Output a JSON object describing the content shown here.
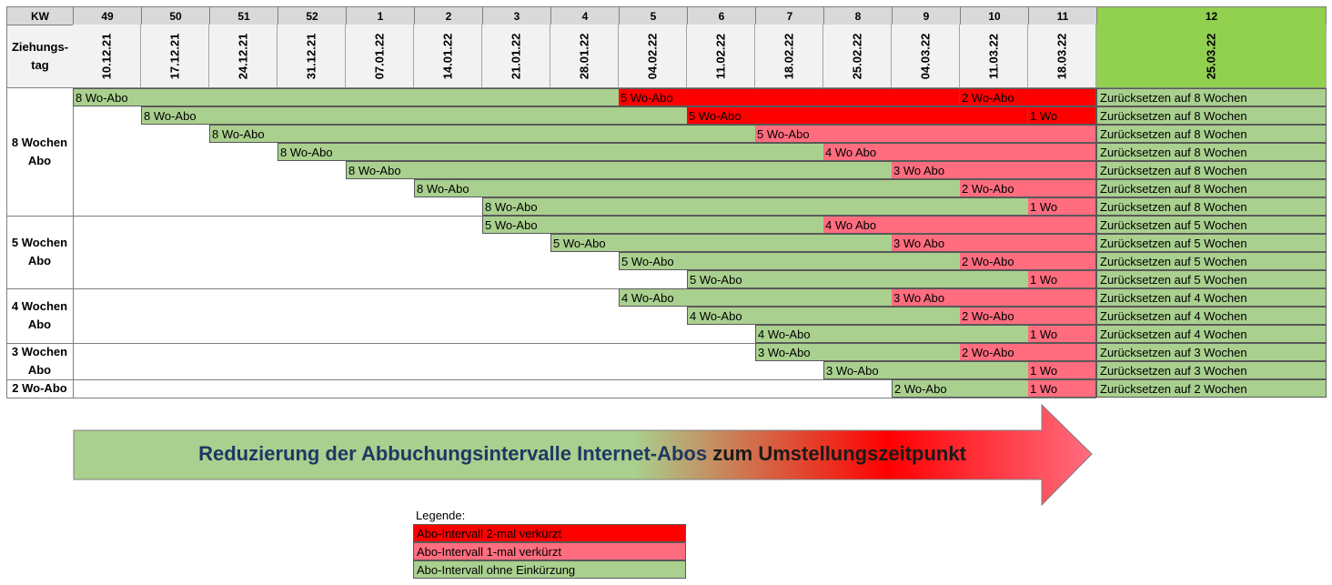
{
  "header": {
    "kw_label": "KW",
    "ziehungstag_label": "Ziehungs-\ntag",
    "weeks": [
      "49",
      "50",
      "51",
      "52",
      "1",
      "2",
      "3",
      "4",
      "5",
      "6",
      "7",
      "8",
      "9",
      "10",
      "11"
    ],
    "dates": [
      "10.12.21",
      "17.12.21",
      "24.12.21",
      "31.12.21",
      "07.01.22",
      "14.01.22",
      "21.01.22",
      "28.01.22",
      "04.02.22",
      "11.02.22",
      "18.02.22",
      "25.02.22",
      "04.03.22",
      "11.03.22",
      "18.03.22"
    ],
    "final_week": "12",
    "final_date": "25.03.22"
  },
  "groups": [
    {
      "label": "8 Wochen\nAbo",
      "rows": [
        0,
        1,
        2,
        3,
        4,
        5,
        6
      ]
    },
    {
      "label": "5 Wochen\nAbo",
      "rows": [
        7,
        8,
        9,
        10
      ]
    },
    {
      "label": "4 Wochen\nAbo",
      "rows": [
        11,
        12,
        13
      ]
    },
    {
      "label": "3 Wochen\nAbo",
      "rows": [
        14,
        15
      ]
    },
    {
      "label": "2 Wo-Abo",
      "rows": [
        16
      ]
    }
  ],
  "rows": [
    {
      "segments": [
        {
          "start": 0,
          "span": 8,
          "type": "green",
          "label": "8 Wo-Abo"
        },
        {
          "start": 8,
          "span": 5,
          "type": "red",
          "label": "5 Wo-Abo"
        },
        {
          "start": 13,
          "span": 2,
          "type": "red",
          "label": "2 Wo-Abo"
        }
      ],
      "reset": "Zurücksetzen auf 8 Wochen"
    },
    {
      "segments": [
        {
          "start": 1,
          "span": 8,
          "type": "green",
          "label": "8 Wo-Abo"
        },
        {
          "start": 9,
          "span": 5,
          "type": "red",
          "label": "5 Wo-Abo"
        },
        {
          "start": 14,
          "span": 1,
          "type": "red",
          "label": "1 Wo"
        }
      ],
      "reset": "Zurücksetzen auf 8 Wochen"
    },
    {
      "segments": [
        {
          "start": 2,
          "span": 8,
          "type": "green",
          "label": "8 Wo-Abo"
        },
        {
          "start": 10,
          "span": 5,
          "type": "pink",
          "label": "5 Wo-Abo"
        }
      ],
      "reset": "Zurücksetzen auf 8 Wochen"
    },
    {
      "segments": [
        {
          "start": 3,
          "span": 8,
          "type": "green",
          "label": "8 Wo-Abo"
        },
        {
          "start": 11,
          "span": 4,
          "type": "pink",
          "label": "4 Wo Abo"
        }
      ],
      "reset": "Zurücksetzen auf 8 Wochen"
    },
    {
      "segments": [
        {
          "start": 4,
          "span": 8,
          "type": "green",
          "label": "8 Wo-Abo"
        },
        {
          "start": 12,
          "span": 3,
          "type": "pink",
          "label": "3 Wo Abo"
        }
      ],
      "reset": "Zurücksetzen auf 8 Wochen"
    },
    {
      "segments": [
        {
          "start": 5,
          "span": 8,
          "type": "green",
          "label": "8 Wo-Abo"
        },
        {
          "start": 13,
          "span": 2,
          "type": "pink",
          "label": "2 Wo-Abo"
        }
      ],
      "reset": "Zurücksetzen auf 8 Wochen"
    },
    {
      "segments": [
        {
          "start": 6,
          "span": 8,
          "type": "green",
          "label": "8 Wo-Abo"
        },
        {
          "start": 14,
          "span": 1,
          "type": "pink",
          "label": "1 Wo"
        }
      ],
      "reset": "Zurücksetzen auf 8 Wochen"
    },
    {
      "segments": [
        {
          "start": 6,
          "span": 5,
          "type": "green",
          "label": "5 Wo-Abo"
        },
        {
          "start": 11,
          "span": 4,
          "type": "pink",
          "label": "4 Wo Abo"
        }
      ],
      "reset": "Zurücksetzen auf 5 Wochen"
    },
    {
      "segments": [
        {
          "start": 7,
          "span": 5,
          "type": "green",
          "label": "5 Wo-Abo"
        },
        {
          "start": 12,
          "span": 3,
          "type": "pink",
          "label": "3 Wo Abo"
        }
      ],
      "reset": "Zurücksetzen auf 5 Wochen"
    },
    {
      "segments": [
        {
          "start": 8,
          "span": 5,
          "type": "green",
          "label": "5 Wo-Abo"
        },
        {
          "start": 13,
          "span": 2,
          "type": "pink",
          "label": "2 Wo-Abo"
        }
      ],
      "reset": "Zurücksetzen auf 5 Wochen"
    },
    {
      "segments": [
        {
          "start": 9,
          "span": 5,
          "type": "green",
          "label": "5 Wo-Abo"
        },
        {
          "start": 14,
          "span": 1,
          "type": "pink",
          "label": "1 Wo"
        }
      ],
      "reset": "Zurücksetzen auf 5 Wochen"
    },
    {
      "segments": [
        {
          "start": 8,
          "span": 4,
          "type": "green",
          "label": "4 Wo-Abo"
        },
        {
          "start": 12,
          "span": 3,
          "type": "pink",
          "label": "3 Wo Abo"
        }
      ],
      "reset": "Zurücksetzen auf 4 Wochen"
    },
    {
      "segments": [
        {
          "start": 9,
          "span": 4,
          "type": "green",
          "label": "4 Wo-Abo"
        },
        {
          "start": 13,
          "span": 2,
          "type": "pink",
          "label": "2 Wo-Abo"
        }
      ],
      "reset": "Zurücksetzen auf 4 Wochen"
    },
    {
      "segments": [
        {
          "start": 10,
          "span": 4,
          "type": "green",
          "label": "4 Wo-Abo"
        },
        {
          "start": 14,
          "span": 1,
          "type": "pink",
          "label": "1 Wo"
        }
      ],
      "reset": "Zurücksetzen auf 4 Wochen"
    },
    {
      "segments": [
        {
          "start": 10,
          "span": 3,
          "type": "green",
          "label": "3 Wo-Abo"
        },
        {
          "start": 13,
          "span": 2,
          "type": "pink",
          "label": "2 Wo-Abo"
        }
      ],
      "reset": "Zurücksetzen auf 3 Wochen"
    },
    {
      "segments": [
        {
          "start": 11,
          "span": 3,
          "type": "green",
          "label": "3 Wo-Abo"
        },
        {
          "start": 14,
          "span": 1,
          "type": "pink",
          "label": "1 Wo"
        }
      ],
      "reset": "Zurücksetzen auf 3 Wochen"
    },
    {
      "segments": [
        {
          "start": 12,
          "span": 2,
          "type": "green",
          "label": "2 Wo-Abo"
        },
        {
          "start": 14,
          "span": 1,
          "type": "pink",
          "label": "1 Wo"
        }
      ],
      "reset": "Zurücksetzen auf 2 Wochen"
    }
  ],
  "arrow": {
    "text_part1": "Reduzierung der Abbuchungsintervalle Internet-Abos",
    "text_part2": " zum Umstellungszeitpunkt",
    "color_start": "#a9d08e",
    "color_end": "#ff6d7f"
  },
  "legend": {
    "title": "Legende:",
    "items": [
      {
        "type": "red",
        "label": "Abo-Intervall 2-mal verkürzt"
      },
      {
        "type": "pink",
        "label": "Abo-Intervall 1-mal verkürzt"
      },
      {
        "type": "green",
        "label": "Abo-Intervall ohne Einkürzung"
      }
    ]
  },
  "colors": {
    "green": "#a9d08e",
    "red": "#ff0000",
    "pink": "#ff6d7f",
    "final_header": "#92d050",
    "header_gray": "#d9d9d9",
    "arrow_text_blue": "#1f3864"
  }
}
